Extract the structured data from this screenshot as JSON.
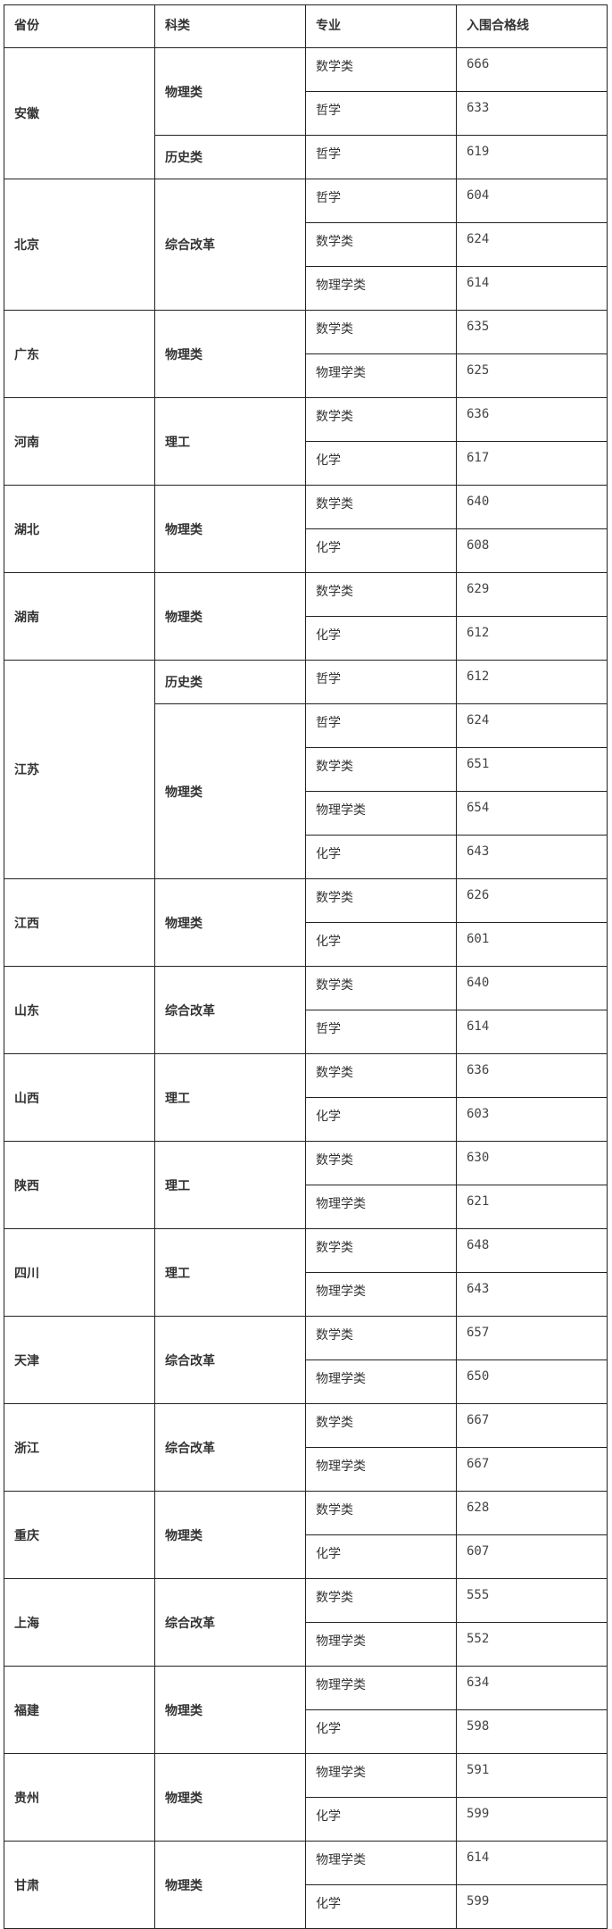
{
  "headers": [
    "省份",
    "科类",
    "专业",
    "入围合格线"
  ],
  "rows": [
    {
      "province": "安徽",
      "groups": [
        {
          "category": "物理类",
          "items": [
            [
              "数学类",
              "666"
            ],
            [
              "哲学",
              "633"
            ]
          ]
        },
        {
          "category": "历史类",
          "items": [
            [
              "哲学",
              "619"
            ]
          ]
        }
      ]
    },
    {
      "province": "北京",
      "groups": [
        {
          "category": "综合改革",
          "items": [
            [
              "哲学",
              "604"
            ],
            [
              "数学类",
              "624"
            ],
            [
              "物理学类",
              "614"
            ]
          ]
        }
      ]
    },
    {
      "province": "广东",
      "groups": [
        {
          "category": "物理类",
          "items": [
            [
              "数学类",
              "635"
            ],
            [
              "物理学类",
              "625"
            ]
          ]
        }
      ]
    },
    {
      "province": "河南",
      "groups": [
        {
          "category": "理工",
          "items": [
            [
              "数学类",
              "636"
            ],
            [
              "化学",
              "617"
            ]
          ]
        }
      ]
    },
    {
      "province": "湖北",
      "groups": [
        {
          "category": "物理类",
          "items": [
            [
              "数学类",
              "640"
            ],
            [
              "化学",
              "608"
            ]
          ]
        }
      ]
    },
    {
      "province": "湖南",
      "groups": [
        {
          "category": "物理类",
          "items": [
            [
              "数学类",
              "629"
            ],
            [
              "化学",
              "612"
            ]
          ]
        }
      ]
    },
    {
      "province": "江苏",
      "groups": [
        {
          "category": "历史类",
          "items": [
            [
              "哲学",
              "612"
            ]
          ]
        },
        {
          "category": "物理类",
          "items": [
            [
              "哲学",
              "624"
            ],
            [
              "数学类",
              "651"
            ],
            [
              "物理学类",
              "654"
            ],
            [
              "化学",
              "643"
            ]
          ]
        }
      ]
    },
    {
      "province": "江西",
      "groups": [
        {
          "category": "物理类",
          "items": [
            [
              "数学类",
              "626"
            ],
            [
              "化学",
              "601"
            ]
          ]
        }
      ]
    },
    {
      "province": "山东",
      "groups": [
        {
          "category": "综合改革",
          "items": [
            [
              "数学类",
              "640"
            ],
            [
              "哲学",
              "614"
            ]
          ]
        }
      ]
    },
    {
      "province": "山西",
      "groups": [
        {
          "category": "理工",
          "items": [
            [
              "数学类",
              "636"
            ],
            [
              "化学",
              "603"
            ]
          ]
        }
      ]
    },
    {
      "province": "陕西",
      "groups": [
        {
          "category": "理工",
          "items": [
            [
              "数学类",
              "630"
            ],
            [
              "物理学类",
              "621"
            ]
          ]
        }
      ]
    },
    {
      "province": "四川",
      "groups": [
        {
          "category": "理工",
          "items": [
            [
              "数学类",
              "648"
            ],
            [
              "物理学类",
              "643"
            ]
          ]
        }
      ]
    },
    {
      "province": "天津",
      "groups": [
        {
          "category": "综合改革",
          "items": [
            [
              "数学类",
              "657"
            ],
            [
              "物理学类",
              "650"
            ]
          ]
        }
      ]
    },
    {
      "province": "浙江",
      "groups": [
        {
          "category": "综合改革",
          "items": [
            [
              "数学类",
              "667"
            ],
            [
              "物理学类",
              "667"
            ]
          ]
        }
      ]
    },
    {
      "province": "重庆",
      "groups": [
        {
          "category": "物理类",
          "items": [
            [
              "数学类",
              "628"
            ],
            [
              "化学",
              "607"
            ]
          ]
        }
      ]
    },
    {
      "province": "上海",
      "groups": [
        {
          "category": "综合改革",
          "items": [
            [
              "数学类",
              "555"
            ],
            [
              "物理学类",
              "552"
            ]
          ]
        }
      ]
    },
    {
      "province": "福建",
      "groups": [
        {
          "category": "物理类",
          "items": [
            [
              "物理学类",
              "634"
            ],
            [
              "化学",
              "598"
            ]
          ]
        }
      ]
    },
    {
      "province": "贵州",
      "groups": [
        {
          "category": "物理类",
          "items": [
            [
              "物理学类",
              "591"
            ],
            [
              "化学",
              "599"
            ]
          ]
        }
      ]
    },
    {
      "province": "甘肃",
      "groups": [
        {
          "category": "物理类",
          "items": [
            [
              "物理学类",
              "614"
            ],
            [
              "化学",
              "599"
            ]
          ]
        }
      ]
    }
  ]
}
